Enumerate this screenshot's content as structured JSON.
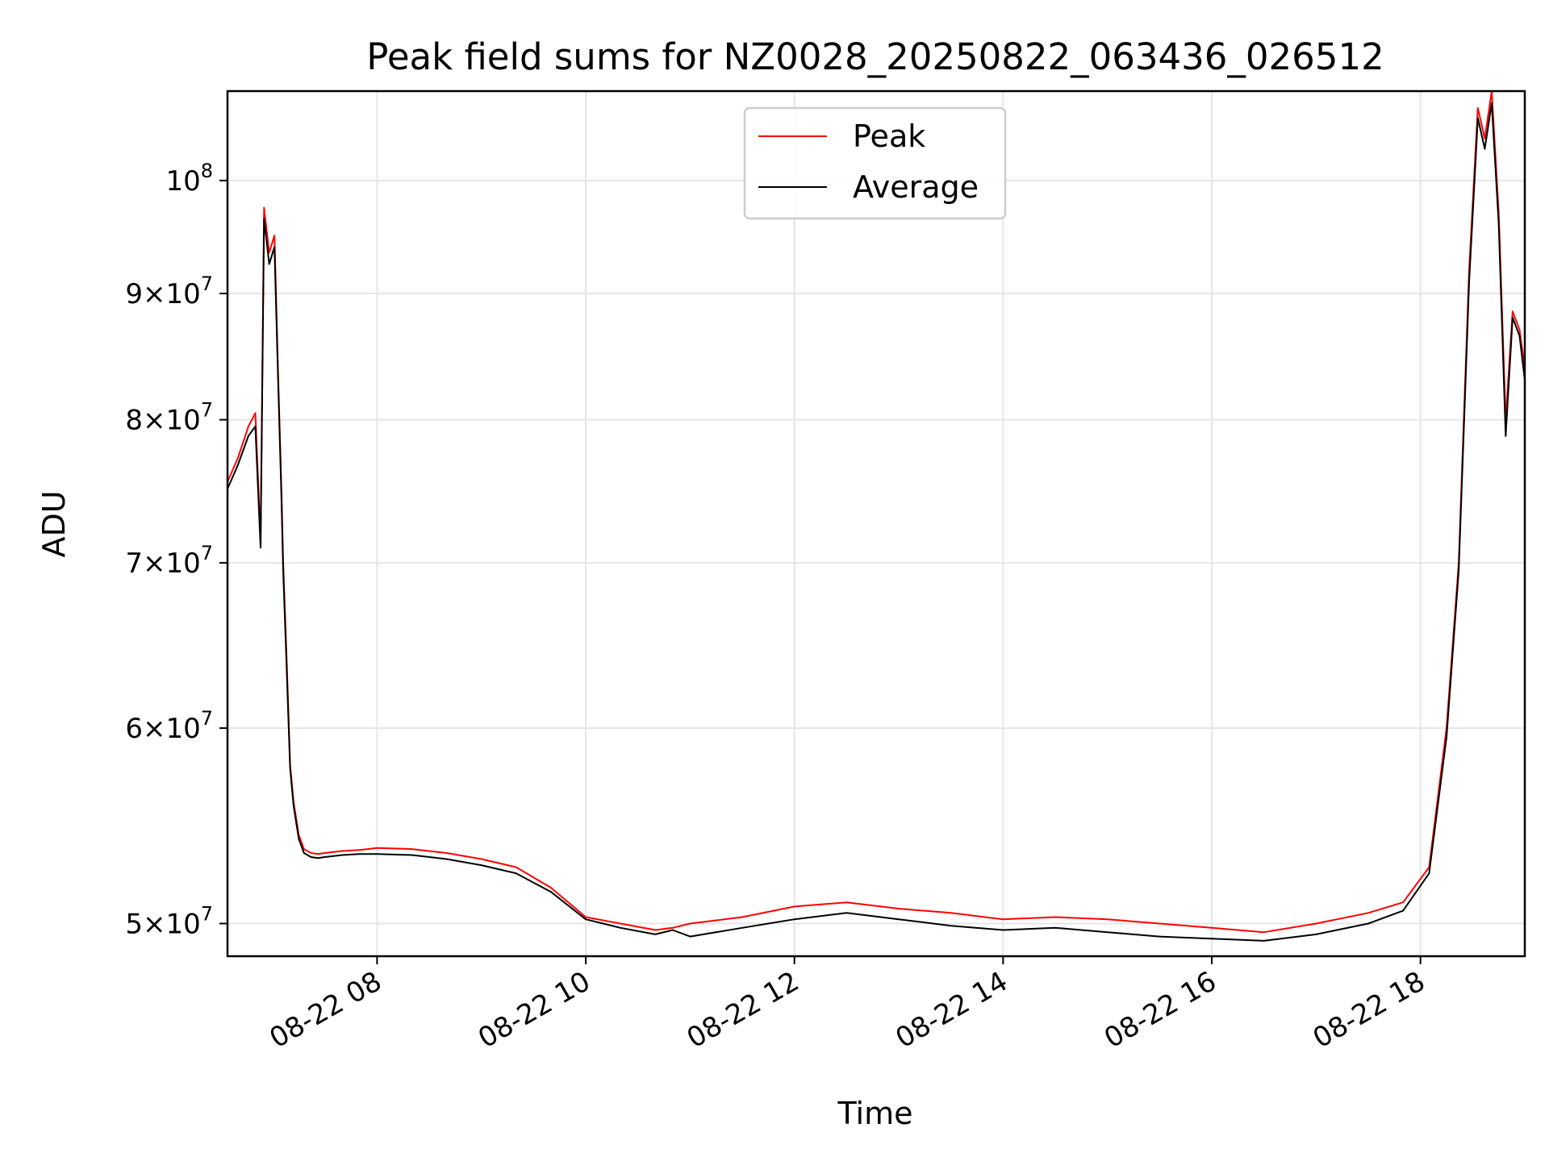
{
  "chart_data": {
    "type": "line",
    "title": "Peak field sums for NZ0028_20250822_063436_026512",
    "xlabel": "Time",
    "ylabel": "ADU",
    "yscale": "log",
    "xlim": [
      "2025-08-22T06:34",
      "2025-08-22T19:00"
    ],
    "ylim": [
      48500000,
      108700000
    ],
    "grid": true,
    "legend": "top-center",
    "x_ticks": [
      {
        "value": "2025-08-22T08:00",
        "label": "08-22 08"
      },
      {
        "value": "2025-08-22T10:00",
        "label": "08-22 10"
      },
      {
        "value": "2025-08-22T12:00",
        "label": "08-22 12"
      },
      {
        "value": "2025-08-22T14:00",
        "label": "08-22 14"
      },
      {
        "value": "2025-08-22T16:00",
        "label": "08-22 16"
      },
      {
        "value": "2025-08-22T18:00",
        "label": "08-22 18"
      }
    ],
    "y_ticks": [
      {
        "value": 50000000,
        "mant": "5",
        "exp": "7"
      },
      {
        "value": 60000000,
        "mant": "6",
        "exp": "7"
      },
      {
        "value": 70000000,
        "mant": "7",
        "exp": "7"
      },
      {
        "value": 80000000,
        "mant": "8",
        "exp": "7"
      },
      {
        "value": 90000000,
        "mant": "9",
        "exp": "7"
      },
      {
        "value": 100000000,
        "mant": "",
        "exp": "8"
      }
    ],
    "series": [
      {
        "name": "Peak",
        "color": "#ff0000",
        "x": [
          "2025-08-22T06:34",
          "2025-08-22T06:40",
          "2025-08-22T06:46",
          "2025-08-22T06:50",
          "2025-08-22T06:53",
          "2025-08-22T06:55",
          "2025-08-22T06:58",
          "2025-08-22T07:01",
          "2025-08-22T07:03",
          "2025-08-22T07:05",
          "2025-08-22T07:06",
          "2025-08-22T07:08",
          "2025-08-22T07:10",
          "2025-08-22T07:12",
          "2025-08-22T07:15",
          "2025-08-22T07:18",
          "2025-08-22T07:22",
          "2025-08-22T07:26",
          "2025-08-22T07:30",
          "2025-08-22T07:35",
          "2025-08-22T07:40",
          "2025-08-22T07:50",
          "2025-08-22T08:00",
          "2025-08-22T08:20",
          "2025-08-22T08:40",
          "2025-08-22T09:00",
          "2025-08-22T09:20",
          "2025-08-22T09:40",
          "2025-08-22T10:00",
          "2025-08-22T10:20",
          "2025-08-22T10:40",
          "2025-08-22T10:50",
          "2025-08-22T11:00",
          "2025-08-22T11:30",
          "2025-08-22T12:00",
          "2025-08-22T12:30",
          "2025-08-22T13:00",
          "2025-08-22T13:30",
          "2025-08-22T14:00",
          "2025-08-22T14:30",
          "2025-08-22T15:00",
          "2025-08-22T15:30",
          "2025-08-22T16:00",
          "2025-08-22T16:30",
          "2025-08-22T17:00",
          "2025-08-22T17:30",
          "2025-08-22T17:50",
          "2025-08-22T18:05",
          "2025-08-22T18:15",
          "2025-08-22T18:22",
          "2025-08-22T18:28",
          "2025-08-22T18:33",
          "2025-08-22T18:37",
          "2025-08-22T18:41",
          "2025-08-22T18:45",
          "2025-08-22T18:49",
          "2025-08-22T18:53",
          "2025-08-22T18:57",
          "2025-08-22T19:00"
        ],
        "y": [
          75500000,
          77200000,
          79500000,
          80500000,
          71500000,
          97500000,
          93500000,
          95000000,
          84000000,
          75000000,
          70000000,
          64000000,
          58000000,
          56000000,
          54300000,
          53600000,
          53400000,
          53350000,
          53400000,
          53450000,
          53500000,
          53550000,
          53650000,
          53600000,
          53400000,
          53100000,
          52700000,
          51700000,
          50300000,
          50000000,
          49700000,
          49800000,
          50000000,
          50300000,
          50800000,
          51000000,
          50700000,
          50500000,
          50200000,
          50300000,
          50200000,
          50000000,
          49800000,
          49600000,
          50000000,
          50500000,
          51000000,
          52700000,
          60000000,
          70000000,
          92000000,
          107000000,
          104000000,
          108700000,
          97000000,
          80000000,
          88500000,
          87000000,
          84000000
        ]
      },
      {
        "name": "Average",
        "color": "#000000",
        "x": [
          "2025-08-22T06:34",
          "2025-08-22T06:40",
          "2025-08-22T06:46",
          "2025-08-22T06:50",
          "2025-08-22T06:53",
          "2025-08-22T06:55",
          "2025-08-22T06:58",
          "2025-08-22T07:01",
          "2025-08-22T07:03",
          "2025-08-22T07:05",
          "2025-08-22T07:06",
          "2025-08-22T07:08",
          "2025-08-22T07:10",
          "2025-08-22T07:12",
          "2025-08-22T07:15",
          "2025-08-22T07:18",
          "2025-08-22T07:22",
          "2025-08-22T07:26",
          "2025-08-22T07:30",
          "2025-08-22T07:35",
          "2025-08-22T07:40",
          "2025-08-22T07:50",
          "2025-08-22T08:00",
          "2025-08-22T08:20",
          "2025-08-22T08:40",
          "2025-08-22T09:00",
          "2025-08-22T09:20",
          "2025-08-22T09:40",
          "2025-08-22T10:00",
          "2025-08-22T10:20",
          "2025-08-22T10:40",
          "2025-08-22T10:50",
          "2025-08-22T11:00",
          "2025-08-22T11:30",
          "2025-08-22T12:00",
          "2025-08-22T12:30",
          "2025-08-22T13:00",
          "2025-08-22T13:30",
          "2025-08-22T14:00",
          "2025-08-22T14:30",
          "2025-08-22T15:00",
          "2025-08-22T15:30",
          "2025-08-22T16:00",
          "2025-08-22T16:30",
          "2025-08-22T17:00",
          "2025-08-22T17:30",
          "2025-08-22T17:50",
          "2025-08-22T18:05",
          "2025-08-22T18:15",
          "2025-08-22T18:22",
          "2025-08-22T18:28",
          "2025-08-22T18:33",
          "2025-08-22T18:37",
          "2025-08-22T18:41",
          "2025-08-22T18:45",
          "2025-08-22T18:49",
          "2025-08-22T18:53",
          "2025-08-22T18:57",
          "2025-08-22T19:00"
        ],
        "y": [
          75000000,
          76700000,
          78800000,
          79500000,
          71000000,
          96500000,
          92500000,
          94000000,
          83500000,
          74500000,
          69500000,
          63500000,
          57800000,
          55800000,
          54100000,
          53400000,
          53200000,
          53150000,
          53200000,
          53250000,
          53300000,
          53350000,
          53350000,
          53300000,
          53100000,
          52800000,
          52400000,
          51500000,
          50200000,
          49800000,
          49500000,
          49700000,
          49400000,
          49800000,
          50200000,
          50500000,
          50200000,
          49900000,
          49700000,
          49800000,
          49600000,
          49400000,
          49300000,
          49200000,
          49500000,
          50000000,
          50600000,
          52400000,
          59500000,
          69500000,
          91000000,
          106000000,
          103000000,
          107500000,
          96000000,
          78800000,
          88000000,
          86500000,
          83000000
        ]
      }
    ]
  }
}
